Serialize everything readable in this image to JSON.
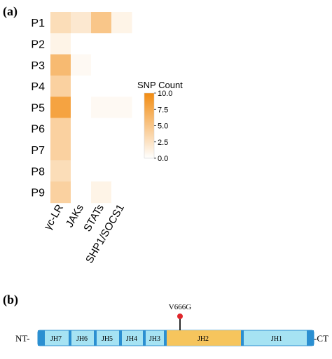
{
  "panel_a": {
    "label": "(a)"
  },
  "panel_b": {
    "label": "(b)",
    "nt_label": "NT-",
    "ct_label": "-CT",
    "mutation": "V666G",
    "domains": [
      "JH7",
      "JH6",
      "JH5",
      "JH4",
      "JH3",
      "JH2",
      "JH1"
    ],
    "colors": {
      "bar": "#a6e3f3",
      "bar_border": "#2b8fd1",
      "separator": "#2b8fd1",
      "jh2": "#f6c55d",
      "lollipop": "#e0262c"
    }
  },
  "chart_data": {
    "type": "heatmap",
    "rows": [
      "P1",
      "P2",
      "P3",
      "P4",
      "P5",
      "P6",
      "P7",
      "P8",
      "P9"
    ],
    "columns": [
      "γc-LR",
      "JAKs",
      "STATs",
      "SHP1/SOCS1"
    ],
    "values": [
      [
        3,
        2,
        5,
        1
      ],
      [
        1,
        0,
        0,
        0
      ],
      [
        6,
        0.5,
        0,
        0
      ],
      [
        4,
        0,
        0,
        0
      ],
      [
        8,
        0,
        0.5,
        0.5
      ],
      [
        4,
        0,
        0,
        0
      ],
      [
        4,
        0,
        0,
        0
      ],
      [
        3,
        0,
        0,
        0
      ],
      [
        4,
        0,
        1,
        0
      ]
    ],
    "colorbar": {
      "title": "SNP Count",
      "min": 0,
      "max": 10,
      "ticks": [
        "10.0",
        "7.5",
        "5.0",
        "2.5",
        "0.0"
      ],
      "low_color": "#ffffff",
      "high_color": "#f28c12"
    }
  }
}
